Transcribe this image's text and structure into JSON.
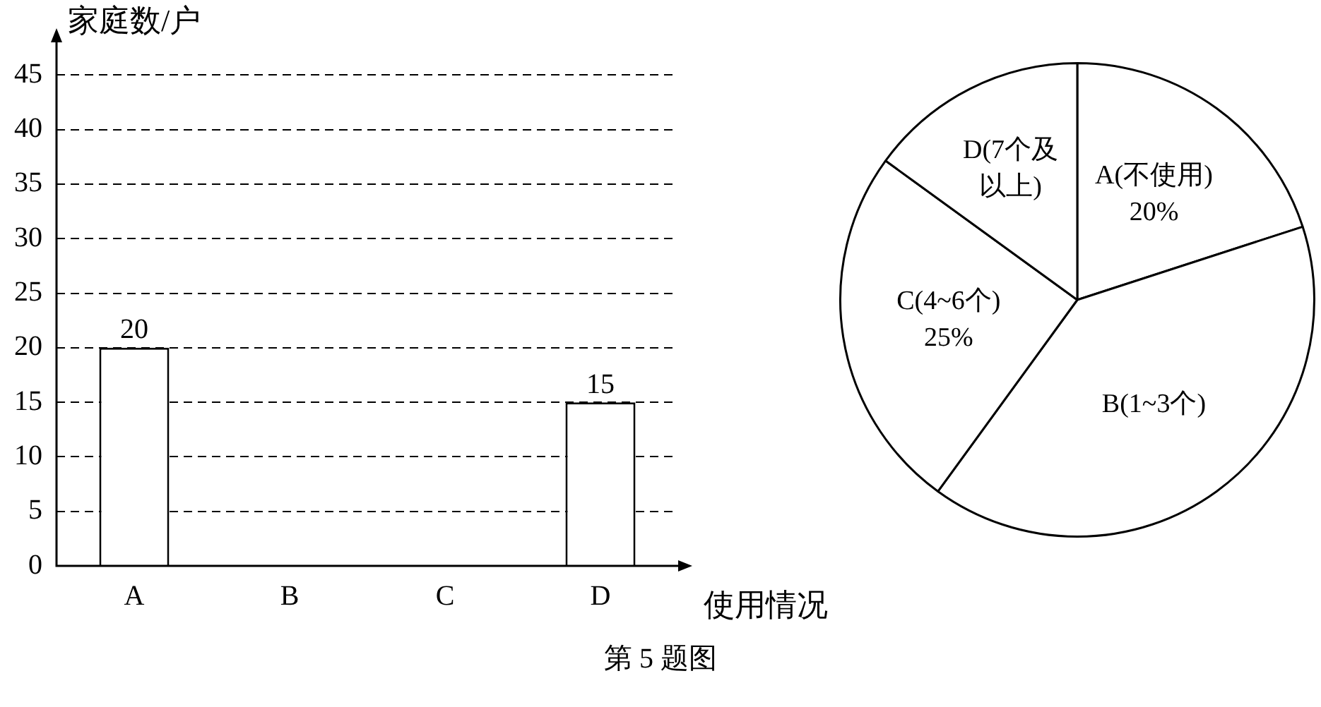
{
  "chart_data": [
    {
      "type": "bar",
      "ylabel": "家庭数/户",
      "xlabel": "使用情况",
      "categories": [
        "A",
        "B",
        "C",
        "D"
      ],
      "values": [
        20,
        null,
        null,
        15
      ],
      "color": "#ffffff",
      "ylim": [
        0,
        48
      ],
      "yticks": [
        0,
        5,
        10,
        15,
        20,
        25,
        30,
        35,
        40,
        45
      ],
      "grid": "y",
      "line_style": "dashed",
      "data_labels": true,
      "legend": false,
      "annotations": [
        "第 5 题图"
      ]
    },
    {
      "type": "pie",
      "categories": [
        "A(不使用)",
        "B(1~3个)",
        "C(4~6个)",
        "D(7个及以上)"
      ],
      "values": [
        20,
        40,
        25,
        15
      ],
      "colors": [
        "#ffffff",
        "#ffffff",
        "#ffffff",
        "#ffffff"
      ],
      "value_labels": [
        "20%",
        null,
        "25%",
        null
      ],
      "legend": false
    }
  ]
}
